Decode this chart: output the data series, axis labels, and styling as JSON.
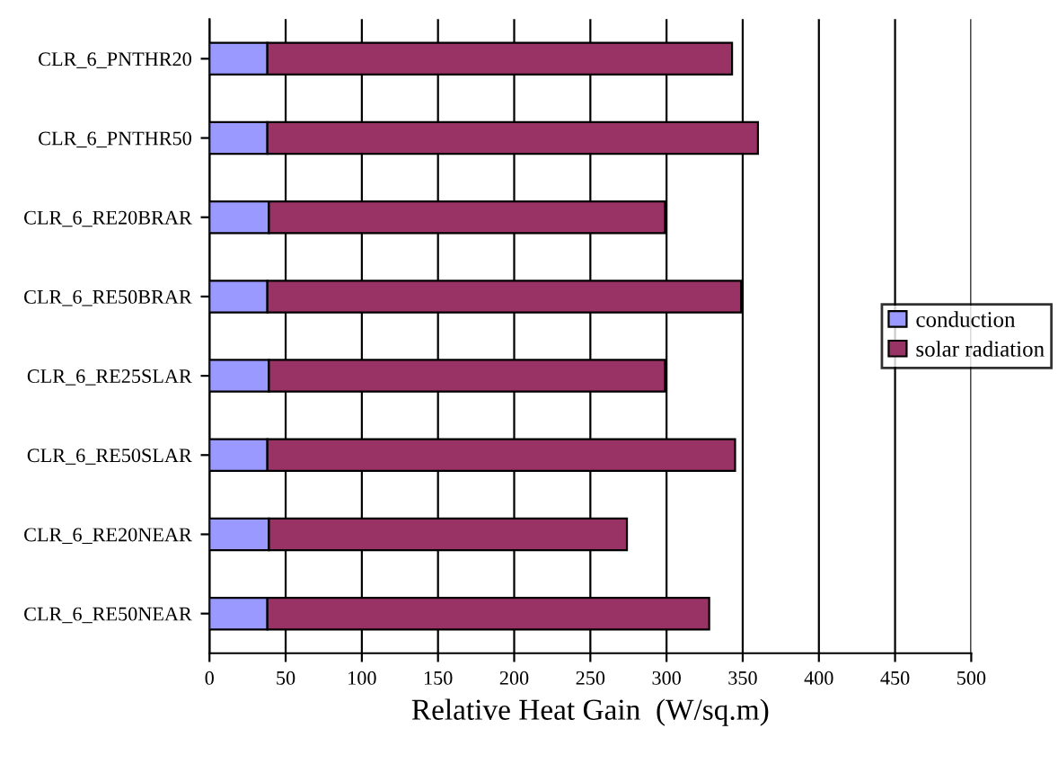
{
  "chart_data": {
    "type": "bar",
    "orientation": "horizontal",
    "stacked": true,
    "xlabel": "Relative Heat Gain  (W/sq.m)",
    "categories": [
      "CLR_6_PNTHR20",
      "CLR_6_PNTHR50",
      "CLR_6_RE20BRAR",
      "CLR_6_RE50BRAR",
      "CLR_6_RE25SLAR",
      "CLR_6_RE50SLAR",
      "CLR_6_RE20NEAR",
      "CLR_6_RE50NEAR"
    ],
    "series": [
      {
        "name": "conduction",
        "color": "#9999ff",
        "values": [
          38,
          38,
          39,
          38,
          39,
          38,
          39,
          38
        ]
      },
      {
        "name": "solar radiation",
        "color": "#993366",
        "values": [
          305,
          322,
          260,
          311,
          260,
          307,
          235,
          290
        ]
      }
    ],
    "xlim": [
      0,
      500
    ],
    "xticks": [
      0,
      50,
      100,
      150,
      200,
      250,
      300,
      350,
      400,
      450,
      500
    ],
    "grid": "x",
    "legend": "right"
  }
}
